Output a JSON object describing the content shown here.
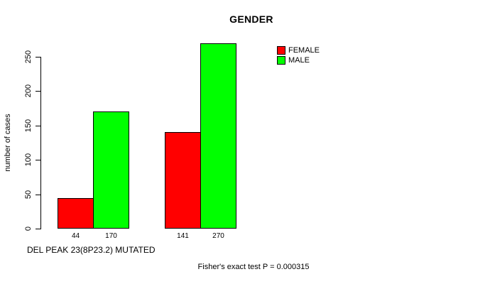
{
  "chart_data": {
    "type": "bar",
    "title": "GENDER",
    "ylabel": "number of cases",
    "xlabel": "DEL PEAK 23(8P23.2) MUTATED",
    "ylim": [
      0,
      250
    ],
    "yticks": [
      0,
      50,
      100,
      150,
      200,
      250
    ],
    "grid": false,
    "legend_position": "top-right",
    "background_color": "#ffffff",
    "axis_color": "#000000",
    "series": [
      {
        "name": "FEMALE",
        "color": "#ff0000",
        "values": [
          44,
          141
        ]
      },
      {
        "name": "MALE",
        "color": "#00ff00",
        "values": [
          170,
          270
        ]
      }
    ],
    "bar_value_labels": [
      "44",
      "170",
      "141",
      "270"
    ],
    "annotation": "Fisher's exact test P = 0.000315"
  }
}
